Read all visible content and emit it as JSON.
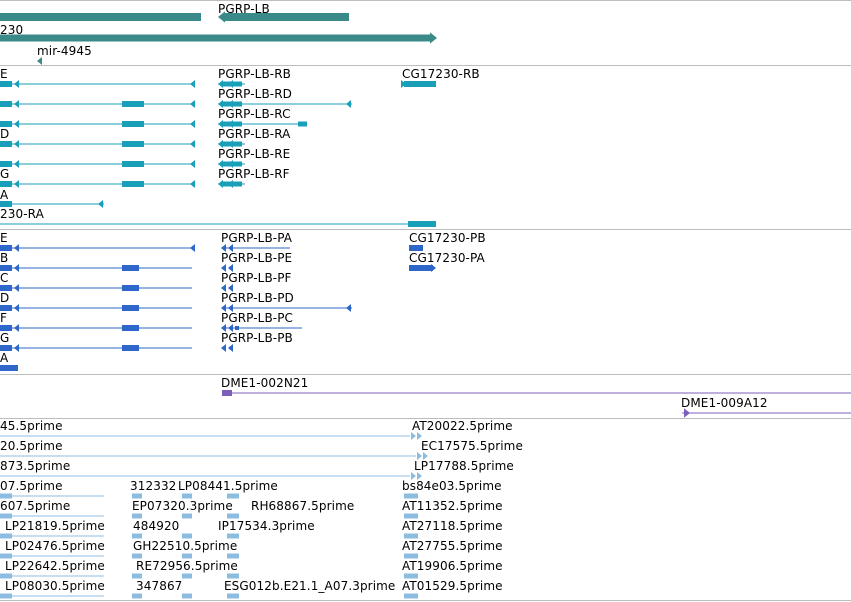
{
  "colors": {
    "gene": "#3a8a8a",
    "transcript": "#1a9fb8",
    "protein": "#2e67c9",
    "clone": "#7c5fb8",
    "est": "#8cbce0",
    "separator": "#bdbdbd"
  },
  "genes": {
    "labels": [
      "PGRP-LB",
      "230",
      "mir-4945"
    ]
  },
  "transcripts": {
    "left_labels": [
      "E",
      "",
      "",
      "D",
      "",
      "G",
      "A",
      "230-RA"
    ],
    "right_labels": [
      "PGRP-LB-RB",
      "PGRP-LB-RD",
      "PGRP-LB-RC",
      "PGRP-LB-RA",
      "PGRP-LB-RE",
      "PGRP-LB-RF"
    ],
    "far_label": "CG17230-RB"
  },
  "proteins": {
    "left_labels": [
      "E",
      "B",
      "C",
      "D",
      "F",
      "G",
      "A"
    ],
    "right_labels": [
      "PGRP-LB-PA",
      "PGRP-LB-PE",
      "PGRP-LB-PF",
      "PGRP-LB-PD",
      "PGRP-LB-PC",
      "PGRP-LB-PB"
    ],
    "far_labels": [
      "CG17230-PB",
      "CG17230-PA"
    ]
  },
  "clones": {
    "labels": [
      "DME1-002N21",
      "DME1-009A12"
    ]
  },
  "ests": {
    "labels": [
      "45.5prime",
      "AT20022.5prime",
      "20.5prime",
      "EC17575.5prime",
      "873.5prime",
      "LP17788.5prime",
      "07.5prime",
      "312332",
      "LP08441.5prime",
      "bs84e03.5prime",
      "607.5prime",
      "EP07320.3prime",
      "RH68867.5prime",
      "AT11352.5prime",
      "LP21819.5prime",
      "484920",
      "IP17534.3prime",
      "AT27118.5prime",
      "LP02476.5prime",
      "GH22510.5prime",
      "AT27755.5prime",
      "LP22642.5prime",
      "RE72956.5prime",
      "AT19906.5prime",
      "LP08030.5prime",
      "347867",
      "ESG012b.E21.1_A07.3prime",
      "AT01529.5prime"
    ]
  }
}
